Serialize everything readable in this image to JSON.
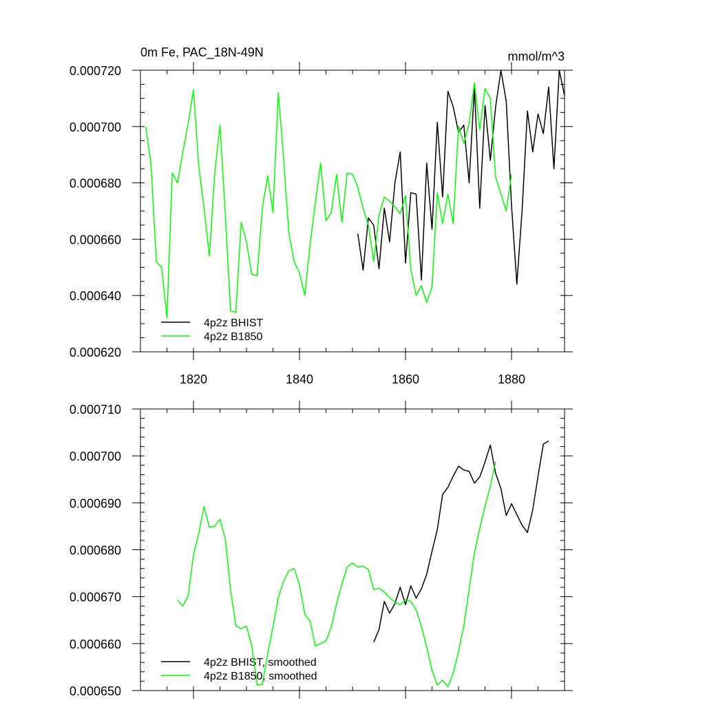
{
  "chart_data": [
    {
      "type": "line",
      "title": "0m Fe, PAC_18N-49N",
      "units": "mmol/m^3",
      "xlim": [
        1810,
        1890
      ],
      "ylim": [
        0.00062,
        0.00072
      ],
      "x_ticks": [
        1820,
        1840,
        1860,
        1880
      ],
      "x_tick_labels": [
        "1820",
        "1840",
        "1860",
        "1880"
      ],
      "x_minor_step": 5,
      "y_ticks": [
        0.00062,
        0.00064,
        0.00066,
        0.00068,
        0.0007,
        0.00072
      ],
      "y_tick_labels": [
        "0.000620",
        "0.000640",
        "0.000660",
        "0.000680",
        "0.000700",
        "0.000720"
      ],
      "y_minor_step": 5e-06,
      "legend_position": "bottom-left",
      "series": [
        {
          "name": "4p2z BHIST",
          "color": "#000000",
          "x": [
            1851,
            1852,
            1853,
            1854,
            1855,
            1856,
            1857,
            1858,
            1859,
            1860,
            1861,
            1862,
            1863,
            1864,
            1865,
            1866,
            1867,
            1868,
            1869,
            1870,
            1871,
            1872,
            1873,
            1874,
            1875,
            1876,
            1877,
            1878,
            1879,
            1880,
            1881,
            1882,
            1883,
            1884,
            1885,
            1886,
            1887,
            1888,
            1889,
            1890
          ],
          "y": [
            0.000662,
            0.000649,
            0.0006675,
            0.000665,
            0.0006495,
            0.000671,
            0.000659,
            0.00068,
            0.000691,
            0.0006515,
            0.0006765,
            0.000676,
            0.0006455,
            0.000687,
            0.0006635,
            0.0007015,
            0.000675,
            0.0007125,
            0.000707,
            0.000698,
            0.0007005,
            0.00068,
            0.000714,
            0.000671,
            0.0007075,
            0.000688,
            0.000707,
            0.00072,
            0.000709,
            0.000672,
            0.000644,
            0.0006705,
            0.0007055,
            0.000691,
            0.0007045,
            0.0006975,
            0.000714,
            0.000685,
            0.00072,
            0.000711
          ]
        },
        {
          "name": "4p2z B1850",
          "color": "#00ff00",
          "x": [
            1811,
            1812,
            1813,
            1814,
            1815,
            1816,
            1817,
            1818,
            1819,
            1820,
            1821,
            1822,
            1823,
            1824,
            1825,
            1826,
            1827,
            1828,
            1829,
            1830,
            1831,
            1832,
            1833,
            1834,
            1835,
            1836,
            1837,
            1838,
            1839,
            1840,
            1841,
            1842,
            1843,
            1844,
            1845,
            1846,
            1847,
            1848,
            1849,
            1850,
            1851,
            1852,
            1853,
            1854,
            1855,
            1856,
            1857,
            1858,
            1859,
            1860,
            1861,
            1862,
            1863,
            1864,
            1865,
            1866,
            1867,
            1868,
            1869,
            1870,
            1871,
            1872,
            1873,
            1874,
            1875,
            1876,
            1877,
            1878,
            1879,
            1880
          ],
          "y": [
            0.0007,
            0.0006865,
            0.000652,
            0.00065,
            0.000632,
            0.0006835,
            0.00068,
            0.000691,
            0.000701,
            0.000713,
            0.000686,
            0.000671,
            0.000654,
            0.000683,
            0.0007005,
            0.000669,
            0.0006345,
            0.000634,
            0.000666,
            0.000659,
            0.0006475,
            0.000647,
            0.000671,
            0.0006825,
            0.0006695,
            0.000712,
            0.000689,
            0.000662,
            0.000652,
            0.000648,
            0.00064,
            0.000658,
            0.000673,
            0.000687,
            0.0006665,
            0.0006695,
            0.000683,
            0.000666,
            0.0006835,
            0.000683,
            0.0006785,
            0.000671,
            0.000665,
            0.000652,
            0.0006685,
            0.000675,
            0.0006735,
            0.0006715,
            0.000669,
            0.0006755,
            0.0006495,
            0.00064,
            0.0006435,
            0.0006375,
            0.000643,
            0.0006765,
            0.0006655,
            0.000676,
            0.0006655,
            0.0007,
            0.000694,
            0.000701,
            0.0007155,
            0.000699,
            0.0007135,
            0.00071,
            0.000682,
            0.000676,
            0.00067,
            0.000683
          ]
        }
      ]
    },
    {
      "type": "line",
      "title": "",
      "units": "",
      "xlim": [
        1810,
        1890
      ],
      "ylim": [
        0.00065,
        0.00071
      ],
      "x_ticks": [
        1820,
        1840,
        1860,
        1880
      ],
      "x_tick_labels": [],
      "x_minor_step": 5,
      "y_ticks": [
        0.00065,
        0.00066,
        0.00067,
        0.00068,
        0.00069,
        0.0007,
        0.00071
      ],
      "y_tick_labels": [
        "0.000650",
        "0.000660",
        "0.000670",
        "0.000680",
        "0.000690",
        "0.000700",
        "0.000710"
      ],
      "y_minor_step": 2e-06,
      "legend_position": "bottom-left",
      "series": [
        {
          "name": "4p2z BHIST, smoothed",
          "color": "#000000",
          "x": [
            1854,
            1855,
            1856,
            1857,
            1858,
            1859,
            1860,
            1861,
            1862,
            1863,
            1864,
            1865,
            1866,
            1867,
            1868,
            1869,
            1870,
            1871,
            1872,
            1873,
            1874,
            1875,
            1876,
            1877,
            1878,
            1879,
            1880,
            1881,
            1882,
            1883,
            1884,
            1885,
            1886,
            1887
          ],
          "y": [
            0.0006603,
            0.000663,
            0.000669,
            0.0006665,
            0.0006685,
            0.000672,
            0.0006683,
            0.0006723,
            0.0006697,
            0.0006717,
            0.0006748,
            0.0006797,
            0.0006843,
            0.0006918,
            0.0006933,
            0.0006957,
            0.0006978,
            0.000697,
            0.0006967,
            0.0006942,
            0.0006955,
            0.0006987,
            0.0007023,
            0.0006963,
            0.000693,
            0.0006873,
            0.0006898,
            0.0006875,
            0.0006852,
            0.0006837,
            0.0006885,
            0.0006957,
            0.0007025,
            0.0007032
          ]
        },
        {
          "name": "4p2z B1850, smoothed",
          "color": "#00ff00",
          "x": [
            1817,
            1818,
            1819,
            1820,
            1821,
            1822,
            1823,
            1824,
            1825,
            1826,
            1827,
            1828,
            1829,
            1830,
            1831,
            1832,
            1833,
            1834,
            1835,
            1836,
            1837,
            1838,
            1839,
            1840,
            1841,
            1842,
            1843,
            1844,
            1845,
            1846,
            1847,
            1848,
            1849,
            1850,
            1851,
            1852,
            1853,
            1854,
            1855,
            1856,
            1857,
            1858,
            1859,
            1860,
            1861,
            1862,
            1863,
            1864,
            1865,
            1866,
            1867,
            1868,
            1869,
            1870,
            1871,
            1872,
            1873,
            1874,
            1875,
            1876,
            1877
          ],
          "y": [
            0.0006693,
            0.000668,
            0.0006702,
            0.0006788,
            0.0006835,
            0.0006892,
            0.0006848,
            0.000685,
            0.0006865,
            0.0006823,
            0.0006715,
            0.0006638,
            0.0006632,
            0.0006637,
            0.0006595,
            0.0006512,
            0.0006513,
            0.0006578,
            0.0006635,
            0.0006698,
            0.0006733,
            0.0006755,
            0.000676,
            0.0006725,
            0.0006663,
            0.0006648,
            0.0006595,
            0.00066,
            0.0006606,
            0.0006635,
            0.0006685,
            0.0006727,
            0.0006763,
            0.0006772,
            0.0006763,
            0.0006765,
            0.0006758,
            0.0006715,
            0.0006718,
            0.000671,
            0.0006698,
            0.0006688,
            0.0006683,
            0.0006693,
            0.000669,
            0.0006672,
            0.0006637,
            0.0006592,
            0.0006543,
            0.0006512,
            0.0006522,
            0.0006508,
            0.0006537,
            0.0006583,
            0.0006637,
            0.0006715,
            0.0006793,
            0.0006845,
            0.0006893,
            0.0006935,
            0.0006988
          ]
        }
      ]
    }
  ]
}
